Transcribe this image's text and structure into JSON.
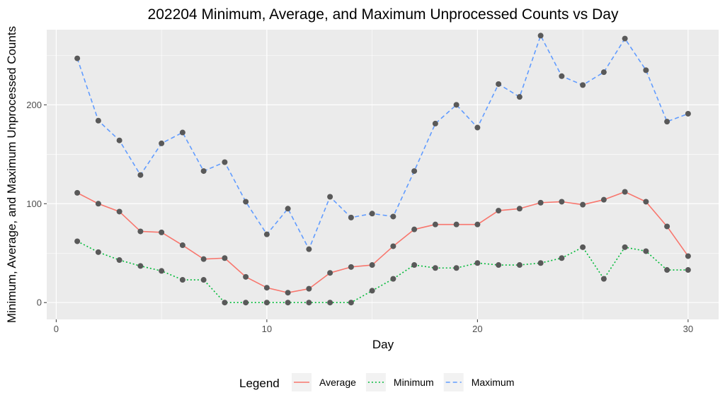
{
  "chart_data": {
    "type": "line",
    "title": "202204 Minimum, Average, and Maximum Unprocessed Counts vs Day",
    "xlabel": "Day",
    "ylabel": "Minimum, Average, and Maximum Unprocessed Counts",
    "xlim": [
      -0.45,
      31.45
    ],
    "ylim": [
      -17,
      276
    ],
    "x_ticks": [
      0,
      10,
      20,
      30
    ],
    "y_ticks": [
      0,
      100,
      200
    ],
    "grid": true,
    "legend": {
      "title": "Legend",
      "position": "bottom",
      "entries": [
        {
          "label": "Average",
          "color": "#f8766d",
          "dash": "solid"
        },
        {
          "label": "Minimum",
          "color": "#00ba38",
          "dash": "dotted"
        },
        {
          "label": "Maximum",
          "color": "#619cff",
          "dash": "dashed"
        }
      ]
    },
    "x": [
      1,
      2,
      3,
      4,
      5,
      6,
      7,
      8,
      9,
      10,
      11,
      12,
      13,
      14,
      15,
      16,
      17,
      18,
      19,
      20,
      21,
      22,
      23,
      24,
      25,
      26,
      27,
      28,
      29,
      30
    ],
    "series": [
      {
        "name": "Average",
        "color": "#f8766d",
        "dash": "solid",
        "values": [
          111,
          100,
          92,
          72,
          71,
          58,
          44,
          45,
          26,
          15,
          10,
          14,
          30,
          36,
          38,
          57,
          74,
          79,
          79,
          79,
          93,
          95,
          101,
          102,
          99,
          104,
          112,
          102,
          77,
          47
        ]
      },
      {
        "name": "Minimum",
        "color": "#00ba38",
        "dash": "dotted",
        "values": [
          62,
          51,
          43,
          37,
          32,
          23,
          23,
          0,
          0,
          0,
          0,
          0,
          0,
          0,
          12,
          24,
          38,
          35,
          35,
          40,
          38,
          38,
          40,
          45,
          56,
          24,
          56,
          52,
          33,
          33
        ]
      },
      {
        "name": "Maximum",
        "color": "#619cff",
        "dash": "dashed",
        "values": [
          247,
          184,
          164,
          129,
          161,
          172,
          133,
          142,
          102,
          69,
          95,
          54,
          107,
          86,
          90,
          87,
          133,
          181,
          200,
          177,
          221,
          208,
          270,
          229,
          220,
          233,
          267,
          235,
          183,
          191
        ]
      }
    ],
    "point_color": "#595959",
    "panel_color": "#ebebeb"
  }
}
